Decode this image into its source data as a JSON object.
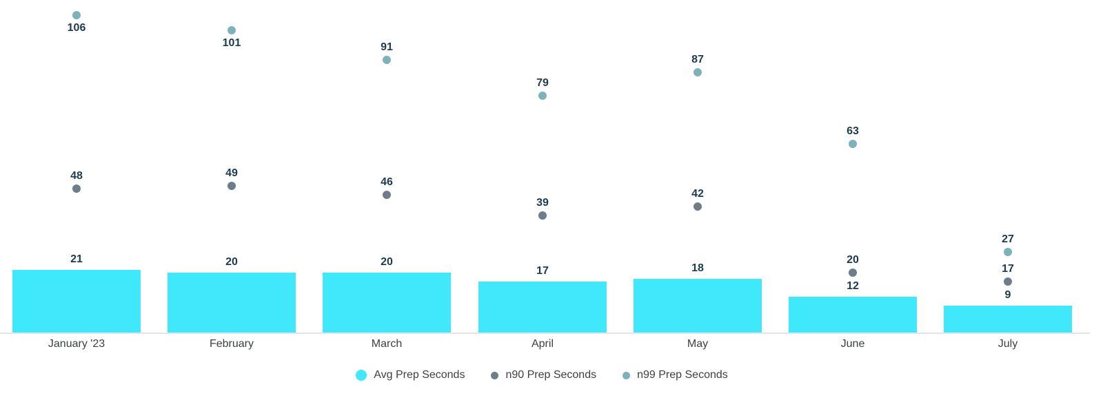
{
  "chart_data": {
    "type": "combo",
    "subtype": "bar+scatter",
    "categories": [
      "January '23",
      "February",
      "March",
      "April",
      "May",
      "June",
      "July"
    ],
    "series": [
      {
        "name": "Avg Prep Seconds",
        "type": "bar",
        "color": "#40e8fb",
        "values": [
          21,
          20,
          20,
          17,
          18,
          12,
          9
        ]
      },
      {
        "name": "n90 Prep Seconds",
        "type": "scatter",
        "color": "#6e7d8a",
        "values": [
          48,
          49,
          46,
          39,
          42,
          20,
          17
        ]
      },
      {
        "name": "n99 Prep Seconds",
        "type": "scatter",
        "color": "#7db2bd",
        "values": [
          106,
          101,
          91,
          79,
          87,
          63,
          27
        ]
      }
    ],
    "title": "",
    "xlabel": "",
    "ylabel": "",
    "ylim": [
      0,
      111
    ],
    "grid": false,
    "y_axis_visible": false,
    "legend_position": "bottom",
    "value_labels": true
  },
  "colors": {
    "background": "#ffffff",
    "axis_line": "#e1e4ea",
    "value_label_text": "#1c3a50",
    "axis_label_text": "#3c4043"
  }
}
